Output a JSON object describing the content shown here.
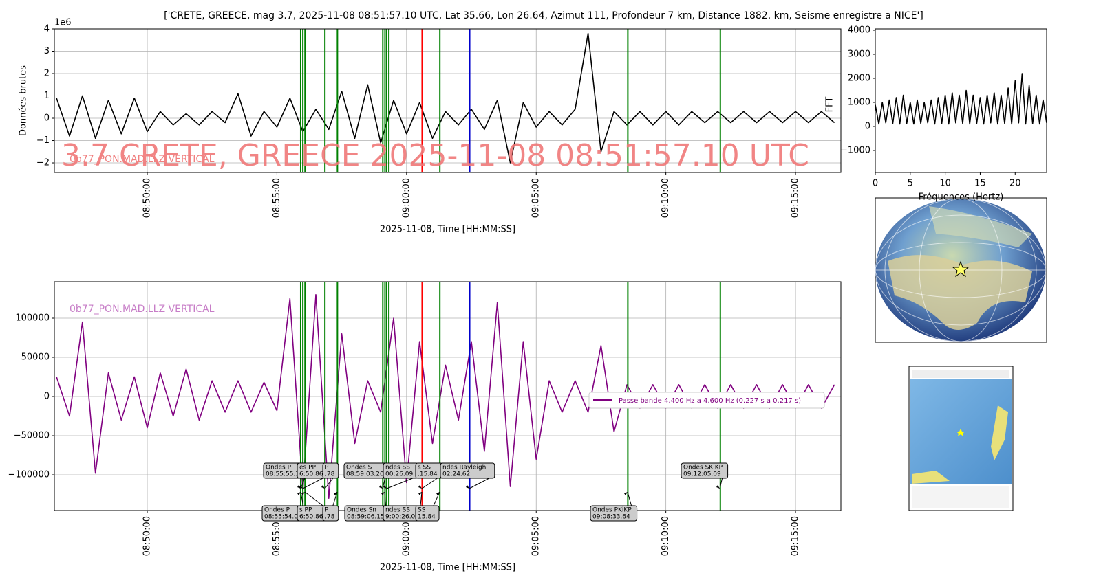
{
  "chart_data": [
    {
      "type": "line",
      "title": "['CRETE, GREECE, mag 3.7, 2025-11-08 08:51:57.10 UTC, Lat 35.66, Lon 26.64, Azimut 111, Profondeur 7 km, Distance 1882. km, Seisme enregistre a NICE']",
      "y_label": "Données brutes",
      "x_label": "2025-11-08, Time [HH:MM:SS]",
      "y_offset_label": "1e6",
      "station_label": "0b77_PON.MAD.LLZ VERTICAL",
      "overlay_text": "3.7 CRETE, GREECE 2025-11-08 08:51:57.10 UTC",
      "xlim": [
        "08:46:25",
        "09:16:45"
      ],
      "xticks": [
        "08:50:00",
        "08:55:00",
        "09:00:00",
        "09:05:00",
        "09:10:00",
        "09:15:00"
      ],
      "ylim": [
        -2.43,
        4
      ],
      "yticks": [
        {
          "value": -2,
          "label": "−2"
        },
        {
          "value": -1,
          "label": "−1"
        },
        0,
        1,
        2,
        3,
        4
      ],
      "grid": true,
      "series": [
        {
          "color": "#000000",
          "x": [
            "08:46:30",
            "08:47:00",
            "08:47:30",
            "08:48:00",
            "08:48:30",
            "08:49:00",
            "08:49:30",
            "08:50:00",
            "08:50:30",
            "08:51:00",
            "08:51:30",
            "08:52:00",
            "08:52:30",
            "08:53:00",
            "08:53:30",
            "08:54:00",
            "08:54:30",
            "08:55:00",
            "08:55:30",
            "08:56:00",
            "08:56:30",
            "08:57:00",
            "08:57:30",
            "08:58:00",
            "08:58:30",
            "08:59:00",
            "08:59:30",
            "09:00:00",
            "09:00:30",
            "09:01:00",
            "09:01:30",
            "09:02:00",
            "09:02:30",
            "09:03:00",
            "09:03:30",
            "09:04:00",
            "09:04:30",
            "09:05:00",
            "09:05:30",
            "09:06:00",
            "09:06:30",
            "09:07:00",
            "09:07:30",
            "09:08:00",
            "09:08:30",
            "09:09:00",
            "09:09:30",
            "09:10:00",
            "09:10:30",
            "09:11:00",
            "09:11:30",
            "09:12:00",
            "09:12:30",
            "09:13:00",
            "09:13:30",
            "09:14:00",
            "09:14:30",
            "09:15:00",
            "09:15:30",
            "09:16:00",
            "09:16:30"
          ],
          "values": [
            0.9,
            -0.8,
            1.0,
            -0.9,
            0.8,
            -0.7,
            0.9,
            -0.6,
            0.3,
            -0.3,
            0.2,
            -0.3,
            0.3,
            -0.2,
            1.1,
            -0.8,
            0.3,
            -0.4,
            0.9,
            -0.6,
            0.4,
            -0.5,
            1.2,
            -0.9,
            1.5,
            -1.1,
            0.8,
            -0.7,
            0.7,
            -0.9,
            0.3,
            -0.3,
            0.4,
            -0.5,
            0.8,
            -2.0,
            0.7,
            -0.4,
            0.3,
            -0.3,
            0.4,
            3.8,
            -1.5,
            0.3,
            -0.3,
            0.3,
            -0.3,
            0.3,
            -0.3,
            0.3,
            -0.2,
            0.3,
            -0.2,
            0.3,
            -0.2,
            0.3,
            -0.2,
            0.3,
            -0.2,
            0.3,
            -0.2
          ]
        }
      ],
      "phase_lines": [
        {
          "x": "08:55:55",
          "color": "#008000"
        },
        {
          "x": "08:56:00",
          "color": "#008000"
        },
        {
          "x": "08:56:05",
          "color": "#008000"
        },
        {
          "x": "08:56:51",
          "color": "#008000"
        },
        {
          "x": "08:57:20",
          "color": "#008000"
        },
        {
          "x": "08:59:05",
          "color": "#008000"
        },
        {
          "x": "08:59:10",
          "color": "#008000"
        },
        {
          "x": "08:59:14",
          "color": "#008000"
        },
        {
          "x": "08:59:19",
          "color": "#008000"
        },
        {
          "x": "09:00:36",
          "color": "#ff0000"
        },
        {
          "x": "09:01:17",
          "color": "#008000"
        },
        {
          "x": "09:02:26",
          "color": "#0000cc"
        },
        {
          "x": "09:08:32",
          "color": "#008000"
        },
        {
          "x": "09:12:06",
          "color": "#008000"
        }
      ]
    },
    {
      "type": "line",
      "y_label": "FFT",
      "x_label": "Fréquences (Hertz)",
      "xlim": [
        0,
        24.5
      ],
      "xticks": [
        0,
        5,
        10,
        15,
        20
      ],
      "ylim": [
        -1914,
        4057
      ],
      "yticks": [
        {
          "value": -1000,
          "label": "−1000"
        },
        0,
        1000,
        2000,
        3000,
        4000
      ],
      "grid": false,
      "series": [
        {
          "color": "#000000",
          "x": [
            0,
            0.5,
            1,
            1.5,
            2,
            2.5,
            3,
            3.5,
            4,
            4.5,
            5,
            5.5,
            6,
            6.5,
            7,
            7.5,
            8,
            8.5,
            9,
            9.5,
            10,
            10.5,
            11,
            11.5,
            12,
            12.5,
            13,
            13.5,
            14,
            14.5,
            15,
            15.5,
            16,
            16.5,
            17,
            17.5,
            18,
            18.5,
            19,
            19.5,
            20,
            20.5,
            21,
            21.5,
            22,
            22.5,
            23,
            23.5,
            24,
            24.5
          ],
          "values": [
            900,
            100,
            1000,
            150,
            1100,
            120,
            1200,
            100,
            1300,
            130,
            1000,
            100,
            1100,
            120,
            1000,
            150,
            1100,
            100,
            1200,
            130,
            1300,
            100,
            1400,
            150,
            1300,
            120,
            1500,
            100,
            1300,
            130,
            1200,
            100,
            1300,
            150,
            1400,
            100,
            1300,
            120,
            1600,
            100,
            1900,
            150,
            2200,
            100,
            1700,
            120,
            1300,
            100,
            1100,
            150
          ]
        }
      ]
    },
    {
      "type": "line",
      "x_label": "2025-11-08, Time [HH:MM:SS]",
      "station_label": "0b77_PON.MAD.LLZ VERTICAL",
      "xlim": [
        "08:46:25",
        "09:16:45"
      ],
      "xticks": [
        "08:50:00",
        "08:55:00",
        "09:00:00",
        "09:05:00",
        "09:10:00",
        "09:15:00"
      ],
      "ylim": [
        -145600,
        146500
      ],
      "yticks": [
        {
          "value": -100000,
          "label": "−100000"
        },
        {
          "value": -50000,
          "label": "−50000"
        },
        0,
        50000,
        100000
      ],
      "grid": true,
      "series": [
        {
          "name": "Passe bande 4.400 Hz a 4.600 Hz (0.227 s a 0.217 s)",
          "color": "#800080",
          "x": [
            "08:46:30",
            "08:47:00",
            "08:47:30",
            "08:48:00",
            "08:48:30",
            "08:49:00",
            "08:49:30",
            "08:50:00",
            "08:50:30",
            "08:51:00",
            "08:51:30",
            "08:52:00",
            "08:52:30",
            "08:53:00",
            "08:53:30",
            "08:54:00",
            "08:54:30",
            "08:55:00",
            "08:55:30",
            "08:56:00",
            "08:56:30",
            "08:57:00",
            "08:57:30",
            "08:58:00",
            "08:58:30",
            "08:59:00",
            "08:59:30",
            "09:00:00",
            "09:00:30",
            "09:01:00",
            "09:01:30",
            "09:02:00",
            "09:02:30",
            "09:03:00",
            "09:03:30",
            "09:04:00",
            "09:04:30",
            "09:05:00",
            "09:05:30",
            "09:06:00",
            "09:06:30",
            "09:07:00",
            "09:07:30",
            "09:08:00",
            "09:08:30",
            "09:09:00",
            "09:09:30",
            "09:10:00",
            "09:10:30",
            "09:11:00",
            "09:11:30",
            "09:12:00",
            "09:12:30",
            "09:13:00",
            "09:13:30",
            "09:14:00",
            "09:14:30",
            "09:15:00",
            "09:15:30",
            "09:16:00",
            "09:16:30"
          ],
          "values": [
            25000,
            -25000,
            95000,
            -98000,
            30000,
            -30000,
            25000,
            -40000,
            30000,
            -25000,
            35000,
            -30000,
            20000,
            -20000,
            20000,
            -20000,
            18000,
            -18000,
            125000,
            -120000,
            130000,
            -130000,
            80000,
            -60000,
            20000,
            -20000,
            100000,
            -110000,
            70000,
            -60000,
            40000,
            -30000,
            70000,
            -70000,
            120000,
            -115000,
            70000,
            -80000,
            20000,
            -20000,
            20000,
            -20000,
            65000,
            -45000,
            15000,
            -15000,
            15000,
            -15000,
            15000,
            -15000,
            15000,
            -15000,
            15000,
            -15000,
            15000,
            -15000,
            15000,
            -15000,
            15000,
            -15000,
            15000
          ]
        }
      ],
      "phase_lines": [
        {
          "x": "08:55:55",
          "color": "#008000"
        },
        {
          "x": "08:56:00",
          "color": "#008000"
        },
        {
          "x": "08:56:05",
          "color": "#008000"
        },
        {
          "x": "08:56:51",
          "color": "#008000"
        },
        {
          "x": "08:57:20",
          "color": "#008000"
        },
        {
          "x": "08:59:05",
          "color": "#008000"
        },
        {
          "x": "08:59:10",
          "color": "#008000"
        },
        {
          "x": "08:59:14",
          "color": "#008000"
        },
        {
          "x": "08:59:19",
          "color": "#008000"
        },
        {
          "x": "09:00:36",
          "color": "#ff0000"
        },
        {
          "x": "09:01:17",
          "color": "#008000"
        },
        {
          "x": "09:02:26",
          "color": "#0000cc"
        },
        {
          "x": "09:08:32",
          "color": "#008000"
        },
        {
          "x": "09:12:06",
          "color": "#008000"
        }
      ],
      "annotations_top": [
        [
          "Ondes P",
          "08:55:55.38"
        ],
        [
          "es PP",
          "6:50.86"
        ],
        [
          "P",
          ".78"
        ],
        [
          "Ondes S",
          "08:59:03.20"
        ],
        [
          "ndes SS",
          "00:26.09"
        ],
        [
          "s SS",
          ".15.84"
        ],
        [
          "ndes Rayleigh",
          "02:24.62"
        ],
        [
          "Ondes SKiKP",
          "09:12:05.09"
        ]
      ],
      "annotations_bottom": [
        [
          "Ondes P",
          "08:55:54.09"
        ],
        [
          "s PP",
          "6:50.86"
        ],
        [
          "P",
          ".78"
        ],
        [
          "Ondes Sn",
          "08:59:06.15"
        ],
        [
          "ndes SS",
          "9:00:26.09"
        ],
        [
          "SS",
          "15.84"
        ],
        [
          "Ondes PKiKP",
          "09:08:33.64"
        ]
      ]
    }
  ]
}
